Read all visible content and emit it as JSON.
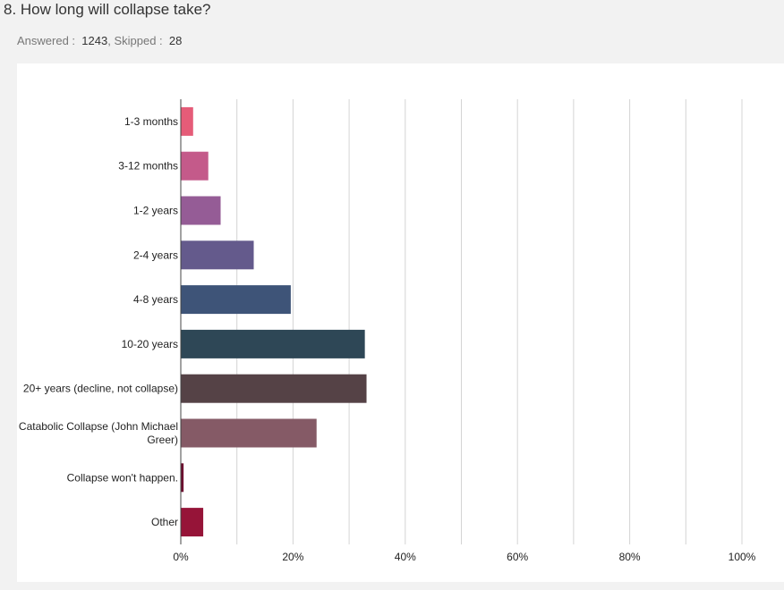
{
  "question": {
    "title": "8. How long will collapse take?",
    "answered_label": "Answered :",
    "answered": "1243",
    "sep": ",",
    "skipped_label": "Skipped :",
    "skipped": "28"
  },
  "chart_data": {
    "type": "bar",
    "orientation": "horizontal",
    "title": "8. How long will collapse take?",
    "categories": [
      [
        "1-3 months"
      ],
      [
        "3-12 months"
      ],
      [
        "1-2 years"
      ],
      [
        "2-4 years"
      ],
      [
        "4-8 years"
      ],
      [
        "10-20 years"
      ],
      [
        "20+ years (decline, not collapse)"
      ],
      [
        "Catabolic Collapse (John Michael",
        "Greer)"
      ],
      [
        "Collapse won't happen."
      ],
      [
        "Other"
      ]
    ],
    "values": [
      2.2,
      4.9,
      7.1,
      13.0,
      19.6,
      32.8,
      33.1,
      24.2,
      0.5,
      4.0
    ],
    "colors": [
      "#e55c78",
      "#c45a8a",
      "#955c96",
      "#645a8c",
      "#3e5478",
      "#2e4756",
      "#554246",
      "#855a66",
      "#6e1030",
      "#961438"
    ],
    "xlim": [
      0,
      100
    ],
    "ticks": [
      "0%",
      "20%",
      "40%",
      "60%",
      "80%",
      "100%"
    ],
    "tick_values": [
      0,
      20,
      40,
      60,
      80,
      100
    ],
    "gridlines": [
      10,
      20,
      30,
      40,
      50,
      60,
      70,
      80,
      90,
      100
    ],
    "grid": true
  }
}
